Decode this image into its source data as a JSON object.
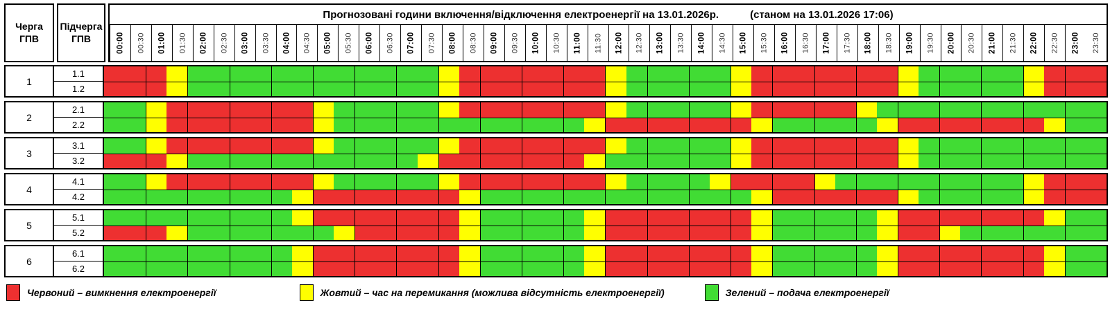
{
  "header": {
    "queue_col_label": "Черга\nГПВ",
    "subqueue_col_label": "Підчерга\nГПВ",
    "title": "Прогнозовані години включення/відключення електроенергії на 13.01.2026р.",
    "note": "(станом на 13.01.2026 17:06)"
  },
  "time_slots": [
    "00:00",
    "00:30",
    "01:00",
    "01:30",
    "02:00",
    "02:30",
    "03:00",
    "03:30",
    "04:00",
    "04:30",
    "05:00",
    "05:30",
    "06:00",
    "06:30",
    "07:00",
    "07:30",
    "08:00",
    "08:30",
    "09:00",
    "09:30",
    "10:00",
    "10:30",
    "11:00",
    "11:30",
    "12:00",
    "12:30",
    "13:00",
    "13:30",
    "14:00",
    "14:30",
    "15:00",
    "15:30",
    "16:00",
    "16:30",
    "17:00",
    "17:30",
    "18:00",
    "18:30",
    "19:00",
    "19:30",
    "20:00",
    "20:30",
    "21:00",
    "21:30",
    "22:00",
    "22:30",
    "23:00",
    "23:30"
  ],
  "colors": {
    "R": "#ed3030",
    "Y": "#ffff00",
    "G": "#41dc34"
  },
  "chart_data": {
    "type": "heatmap",
    "title": "Прогнозовані години включення/відключення електроенергії на 13.01.2026р.",
    "x": "time_slots (48 half-hour columns 00:00–23:30)",
    "legend_position": "bottom",
    "value_meaning": {
      "R": "вимкнення електроенергії",
      "Y": "час на перемикання",
      "G": "подача електроенергії"
    }
  },
  "groups": [
    {
      "queue": "1",
      "rows": [
        {
          "label": "1.1",
          "cells": "RRRYGGGGGGGGGGGGYRRRRRRRYGGGGGYRRRRRRRYGGGGGYRRR"
        },
        {
          "label": "1.2",
          "cells": "RRRYGGGGGGGGGGGGYRRRRRRRYGGGGGYRRRRRRRYGGGGGYRRR"
        }
      ]
    },
    {
      "queue": "2",
      "rows": [
        {
          "label": "2.1",
          "cells": "GGYRRRRRRRYGGGGGYRRRRRRRYGGGGGYRRRRRYGGGGGGGGGGG"
        },
        {
          "label": "2.2",
          "cells": "GGYRRRRRRRYGGGGGGGGGGGGYRRRRRRRYGGGGGYRRRRRRRYGG"
        }
      ]
    },
    {
      "queue": "3",
      "rows": [
        {
          "label": "3.1",
          "cells": "GGYRRRRRRRYGGGGGYRRRRRRRYGGGGGYRRRRRRRYGGGGGGGGG"
        },
        {
          "label": "3.2",
          "cells": "RRRYGGGGGGGGGGGYRRRRRRRYGGGGGGYRRRRRRRYGGGGGGGGG"
        }
      ]
    },
    {
      "queue": "4",
      "rows": [
        {
          "label": "4.1",
          "cells": "GGYRRRRRRRYGGGGGYRRRRRRRYGGGGYRRRRYGGGGGGGGGYRRR"
        },
        {
          "label": "4.2",
          "cells": "GGGGGGGGGYRRRRRRRYGGGGGGGGGGGGGYRRRRRRYGGGGGYRRR"
        }
      ]
    },
    {
      "queue": "5",
      "rows": [
        {
          "label": "5.1",
          "cells": "GGGGGGGGGYRRRRRRRYGGGGGYRRRRRRRYGGGGGYRRRRRRRYGG"
        },
        {
          "label": "5.2",
          "cells": "RRRYGGGGGGGYRRRRRYGGGGGYRRRRRRRYGGGGGYRRYGGGGGGG"
        }
      ]
    },
    {
      "queue": "6",
      "rows": [
        {
          "label": "6.1",
          "cells": "GGGGGGGGGYRRRRRRRYGGGGGYRRRRRRRYGGGGGYRRRRRRRYGG"
        },
        {
          "label": "6.2",
          "cells": "GGGGGGGGGYRRRRRRRYGGGGGYRRRRRRRYGGGGGYRRRRRRRYGG"
        }
      ]
    }
  ],
  "legend": {
    "items": [
      {
        "key": "R",
        "label": "Червоний – вимкнення електроенергії"
      },
      {
        "key": "Y",
        "label": "Жовтий – час на перемикання (можлива відсутність електроенергії)"
      },
      {
        "key": "G",
        "label": "Зелений – подача електроенергії"
      }
    ]
  }
}
